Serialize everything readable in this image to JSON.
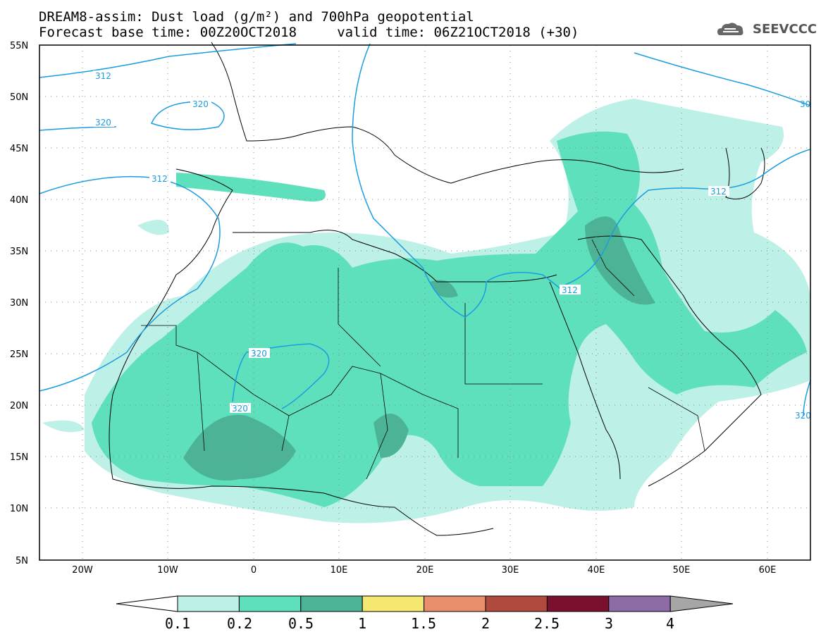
{
  "header": {
    "title_line1": "DREAM8-assim: Dust load (g/m²) and 700hPa geopotential",
    "title_line2": "Forecast base time: 00Z20OCT2018     valid time: 06Z21OCT2018 (+30)",
    "logo_text": "SEEVCCC",
    "logo_icon": "cloud-icon"
  },
  "map": {
    "lat_labels": [
      "55N",
      "50N",
      "45N",
      "40N",
      "35N",
      "30N",
      "25N",
      "20N",
      "15N",
      "10N",
      "5N"
    ],
    "lon_labels": [
      "20W",
      "10W",
      "0",
      "10E",
      "20E",
      "30E",
      "40E",
      "50E",
      "60E"
    ],
    "contour_labels": [
      "312",
      "320",
      "320",
      "312",
      "320",
      "320",
      "312",
      "312",
      "30",
      "320"
    ],
    "contour_color": "#1a9de0"
  },
  "colorbar": {
    "labels": [
      "0.1",
      "0.2",
      "0.5",
      "1",
      "1.5",
      "2",
      "2.5",
      "3",
      "4"
    ],
    "colors": [
      "#ffffff",
      "#bdf0e6",
      "#5ee0bd",
      "#4db396",
      "#f5e870",
      "#e88e6a",
      "#b04a3e",
      "#7a0f2e",
      "#8e6aa6",
      "#a6a6a6"
    ]
  }
}
